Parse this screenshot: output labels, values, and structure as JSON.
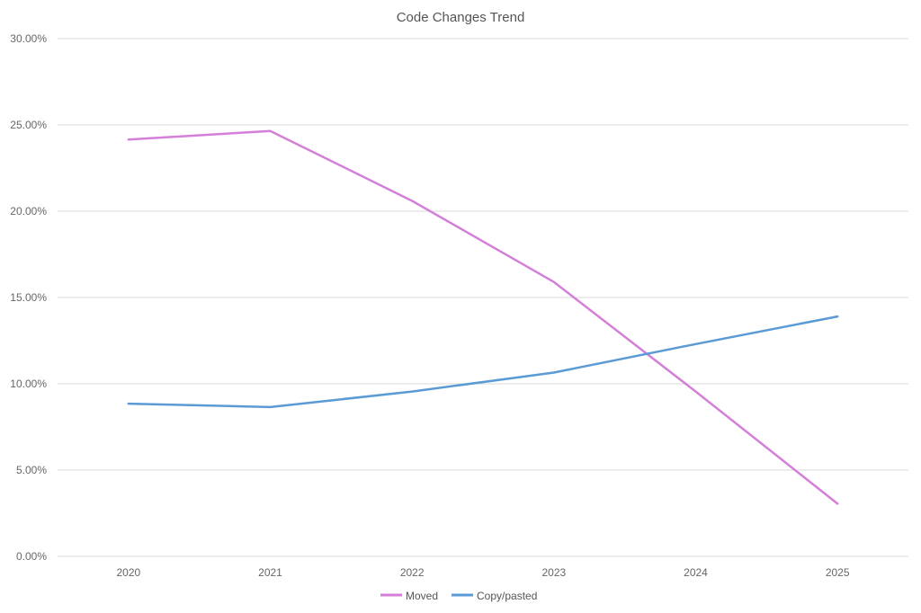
{
  "chart_data": {
    "type": "line",
    "title": "Code Changes Trend",
    "xlabel": "",
    "ylabel": "",
    "categories": [
      "2020",
      "2021",
      "2022",
      "2023",
      "2024",
      "2025"
    ],
    "series": [
      {
        "name": "Moved",
        "color": "#d47fd8",
        "values": [
          24.15,
          24.65,
          20.6,
          15.9,
          9.55,
          3.05
        ]
      },
      {
        "name": "Copy/pasted",
        "color": "#5b9bd5",
        "values": [
          8.85,
          8.65,
          9.55,
          10.65,
          12.3,
          13.9
        ]
      }
    ],
    "ylim": [
      0,
      30
    ],
    "yticks": [
      "0.00%",
      "5.00%",
      "10.00%",
      "15.00%",
      "20.00%",
      "25.00%",
      "30.00%"
    ],
    "grid": true,
    "legend": "bottom-center"
  }
}
